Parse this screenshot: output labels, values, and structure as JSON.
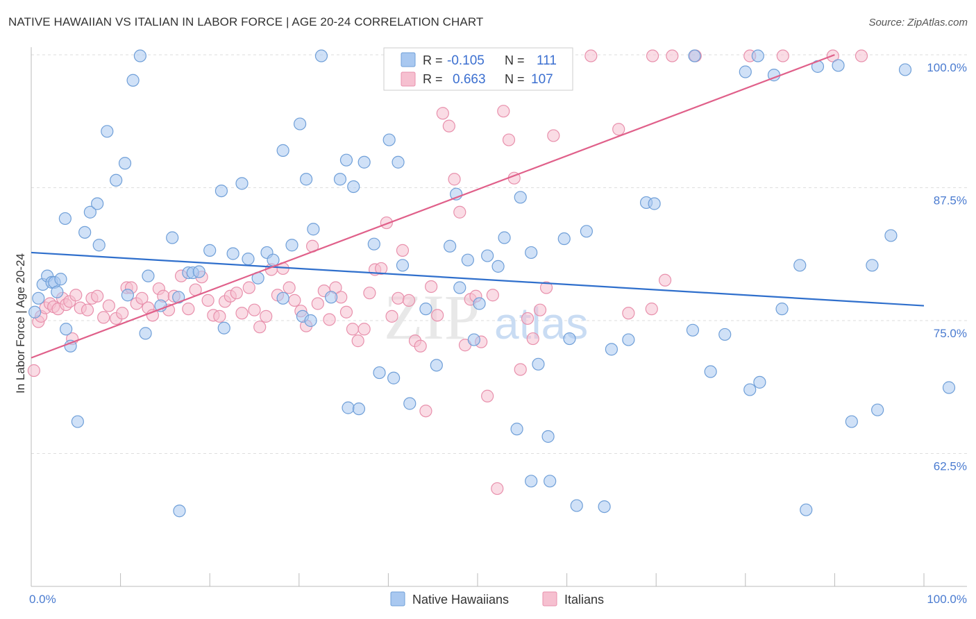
{
  "title": "NATIVE HAWAIIAN VS ITALIAN IN LABOR FORCE | AGE 20-24 CORRELATION CHART",
  "source": "Source: ZipAtlas.com",
  "watermark": {
    "zip": "ZIP",
    "atlas": "atlas"
  },
  "colors": {
    "blue_fill": "#a9c8f0",
    "blue_stroke": "#6f9fd8",
    "blue_line": "#2f6fcc",
    "pink_fill": "#f6c0d0",
    "pink_stroke": "#e890ac",
    "pink_line": "#e0608a",
    "tick": "#4a7bd0",
    "grid": "#dddddd"
  },
  "stats": {
    "r_label": "R =",
    "n_label": "N =",
    "blue": {
      "r": "-0.105",
      "n": "111"
    },
    "pink": {
      "r": "0.663",
      "n": "107"
    }
  },
  "chart_data": {
    "type": "scatter",
    "xlabel": "",
    "ylabel": "In Labor Force | Age 20-24",
    "xlim": [
      0,
      100
    ],
    "ylim": [
      50,
      100
    ],
    "x_tick_labels": [
      "0.0%",
      "100.0%"
    ],
    "y_ticks": [
      62.5,
      75.0,
      87.5,
      100.0
    ],
    "y_tick_labels": [
      "62.5%",
      "75.0%",
      "87.5%",
      "100.0%"
    ],
    "grid": true,
    "legend": {
      "placement": "bottom",
      "entries": [
        "Native Hawaiians",
        "Italians"
      ]
    },
    "series": [
      {
        "name": "Native Hawaiians",
        "color": "#a9c8f0",
        "trend": {
          "x": [
            0,
            100
          ],
          "y": [
            81.4,
            76.4
          ]
        },
        "points": [
          [
            0.4,
            75.8
          ],
          [
            0.8,
            77.1
          ],
          [
            1.3,
            78.4
          ],
          [
            1.8,
            79.2
          ],
          [
            2.3,
            78.6
          ],
          [
            2.6,
            78.6
          ],
          [
            2.9,
            77.7
          ],
          [
            3.3,
            78.9
          ],
          [
            3.9,
            74.2
          ],
          [
            4.4,
            72.6
          ],
          [
            3.8,
            84.6
          ],
          [
            5.2,
            65.5
          ],
          [
            6.0,
            83.3
          ],
          [
            6.6,
            85.2
          ],
          [
            7.4,
            86.0
          ],
          [
            7.6,
            82.1
          ],
          [
            8.5,
            92.8
          ],
          [
            9.5,
            88.2
          ],
          [
            10.5,
            89.8
          ],
          [
            11.4,
            97.6
          ],
          [
            12.2,
            99.9
          ],
          [
            10.8,
            77.4
          ],
          [
            12.8,
            73.8
          ],
          [
            13.1,
            79.2
          ],
          [
            14.5,
            76.4
          ],
          [
            15.8,
            82.8
          ],
          [
            16.5,
            77.2
          ],
          [
            17.6,
            79.5
          ],
          [
            18.1,
            79.5
          ],
          [
            18.8,
            79.6
          ],
          [
            16.6,
            57.1
          ],
          [
            20.0,
            81.6
          ],
          [
            21.3,
            87.2
          ],
          [
            21.6,
            74.3
          ],
          [
            22.6,
            81.3
          ],
          [
            23.6,
            87.9
          ],
          [
            24.3,
            80.8
          ],
          [
            25.4,
            79.0
          ],
          [
            26.4,
            81.4
          ],
          [
            27.1,
            80.7
          ],
          [
            28.2,
            77.1
          ],
          [
            29.2,
            82.1
          ],
          [
            28.2,
            91.0
          ],
          [
            30.1,
            93.5
          ],
          [
            30.8,
            88.3
          ],
          [
            30.4,
            75.4
          ],
          [
            31.3,
            75.0
          ],
          [
            31.6,
            83.6
          ],
          [
            32.5,
            99.9
          ],
          [
            33.6,
            77.2
          ],
          [
            34.6,
            88.3
          ],
          [
            35.3,
            90.1
          ],
          [
            36.1,
            87.6
          ],
          [
            35.5,
            66.8
          ],
          [
            36.7,
            66.7
          ],
          [
            37.3,
            89.9
          ],
          [
            38.4,
            82.2
          ],
          [
            39.0,
            70.1
          ],
          [
            40.1,
            92.0
          ],
          [
            40.6,
            69.6
          ],
          [
            41.1,
            89.9
          ],
          [
            41.6,
            80.2
          ],
          [
            42.4,
            67.2
          ],
          [
            42.8,
            99.9
          ],
          [
            44.2,
            76.1
          ],
          [
            45.4,
            70.8
          ],
          [
            46.9,
            82.0
          ],
          [
            47.6,
            86.9
          ],
          [
            48.0,
            78.1
          ],
          [
            48.9,
            80.7
          ],
          [
            49.6,
            73.2
          ],
          [
            50.2,
            76.6
          ],
          [
            51.1,
            81.1
          ],
          [
            52.3,
            80.1
          ],
          [
            53.0,
            82.8
          ],
          [
            54.4,
            64.8
          ],
          [
            54.8,
            86.6
          ],
          [
            56.0,
            81.4
          ],
          [
            56.8,
            70.9
          ],
          [
            56.0,
            59.9
          ],
          [
            57.9,
            64.1
          ],
          [
            58.1,
            59.9
          ],
          [
            59.7,
            82.7
          ],
          [
            60.3,
            73.3
          ],
          [
            61.1,
            57.6
          ],
          [
            62.2,
            83.4
          ],
          [
            64.2,
            57.5
          ],
          [
            65.0,
            72.3
          ],
          [
            66.9,
            73.2
          ],
          [
            68.9,
            86.1
          ],
          [
            69.8,
            86.0
          ],
          [
            74.1,
            74.1
          ],
          [
            74.3,
            99.9
          ],
          [
            76.1,
            70.2
          ],
          [
            77.7,
            73.7
          ],
          [
            80.0,
            98.4
          ],
          [
            80.5,
            68.5
          ],
          [
            81.4,
            99.9
          ],
          [
            81.6,
            69.2
          ],
          [
            83.2,
            98.1
          ],
          [
            84.1,
            76.1
          ],
          [
            86.1,
            80.2
          ],
          [
            91.9,
            65.5
          ],
          [
            94.2,
            80.2
          ],
          [
            94.8,
            66.6
          ],
          [
            96.3,
            83.0
          ],
          [
            102.8,
            68.7
          ],
          [
            86.8,
            57.2
          ],
          [
            88.1,
            98.9
          ],
          [
            90.4,
            99.0
          ],
          [
            97.9,
            98.6
          ]
        ]
      },
      {
        "name": "Italians",
        "color": "#f6c0d0",
        "trend": {
          "x": [
            0,
            90
          ],
          "y": [
            71.5,
            100.0
          ]
        },
        "points": [
          [
            0.3,
            70.3
          ],
          [
            0.8,
            74.9
          ],
          [
            1.1,
            75.4
          ],
          [
            1.6,
            76.2
          ],
          [
            2.1,
            76.6
          ],
          [
            2.5,
            76.3
          ],
          [
            3.0,
            76.1
          ],
          [
            3.5,
            77.1
          ],
          [
            3.9,
            76.5
          ],
          [
            4.3,
            76.8
          ],
          [
            4.6,
            73.3
          ],
          [
            5.0,
            77.4
          ],
          [
            5.5,
            76.2
          ],
          [
            6.3,
            76.0
          ],
          [
            6.8,
            77.1
          ],
          [
            7.4,
            77.3
          ],
          [
            8.1,
            75.3
          ],
          [
            8.7,
            76.4
          ],
          [
            9.5,
            75.2
          ],
          [
            10.2,
            75.7
          ],
          [
            10.7,
            78.1
          ],
          [
            11.2,
            78.1
          ],
          [
            11.8,
            76.6
          ],
          [
            12.4,
            77.1
          ],
          [
            13.1,
            76.2
          ],
          [
            13.6,
            75.5
          ],
          [
            14.3,
            78.0
          ],
          [
            14.8,
            77.3
          ],
          [
            15.4,
            76.0
          ],
          [
            16.0,
            77.3
          ],
          [
            16.8,
            79.2
          ],
          [
            17.6,
            76.1
          ],
          [
            18.4,
            77.9
          ],
          [
            19.1,
            79.1
          ],
          [
            19.8,
            76.9
          ],
          [
            20.4,
            75.5
          ],
          [
            21.1,
            75.4
          ],
          [
            21.7,
            76.8
          ],
          [
            22.3,
            77.3
          ],
          [
            23.0,
            77.6
          ],
          [
            23.6,
            75.7
          ],
          [
            24.4,
            78.1
          ],
          [
            25.0,
            76.0
          ],
          [
            25.6,
            74.4
          ],
          [
            26.3,
            75.4
          ],
          [
            26.9,
            79.8
          ],
          [
            27.6,
            77.4
          ],
          [
            28.2,
            79.9
          ],
          [
            28.9,
            78.1
          ],
          [
            29.5,
            76.9
          ],
          [
            30.2,
            75.9
          ],
          [
            30.8,
            74.5
          ],
          [
            31.5,
            82.0
          ],
          [
            32.1,
            76.6
          ],
          [
            32.8,
            77.8
          ],
          [
            33.4,
            75.1
          ],
          [
            34.1,
            78.1
          ],
          [
            34.7,
            77.2
          ],
          [
            35.3,
            75.8
          ],
          [
            36.0,
            74.2
          ],
          [
            36.6,
            73.1
          ],
          [
            37.3,
            74.2
          ],
          [
            37.9,
            77.6
          ],
          [
            38.5,
            79.8
          ],
          [
            39.2,
            79.9
          ],
          [
            39.8,
            84.2
          ],
          [
            40.4,
            75.4
          ],
          [
            41.1,
            77.1
          ],
          [
            41.6,
            81.6
          ],
          [
            42.3,
            76.9
          ],
          [
            43.0,
            73.1
          ],
          [
            43.6,
            72.6
          ],
          [
            44.2,
            66.5
          ],
          [
            44.8,
            78.2
          ],
          [
            45.5,
            75.5
          ],
          [
            46.1,
            94.5
          ],
          [
            46.8,
            93.3
          ],
          [
            47.4,
            88.3
          ],
          [
            48.0,
            85.2
          ],
          [
            48.6,
            72.7
          ],
          [
            49.2,
            77.0
          ],
          [
            49.8,
            77.3
          ],
          [
            50.4,
            73.0
          ],
          [
            51.1,
            67.9
          ],
          [
            51.7,
            77.4
          ],
          [
            52.2,
            59.2
          ],
          [
            52.9,
            94.7
          ],
          [
            53.5,
            92.0
          ],
          [
            54.1,
            88.4
          ],
          [
            54.8,
            70.4
          ],
          [
            55.6,
            75.2
          ],
          [
            56.2,
            73.3
          ],
          [
            57.0,
            76.0
          ],
          [
            57.7,
            78.1
          ],
          [
            58.5,
            92.4
          ],
          [
            62.7,
            99.9
          ],
          [
            65.8,
            93.0
          ],
          [
            66.9,
            75.7
          ],
          [
            69.6,
            99.9
          ],
          [
            71.0,
            78.8
          ],
          [
            74.4,
            99.9
          ],
          [
            80.5,
            99.9
          ],
          [
            84.2,
            99.9
          ],
          [
            89.8,
            99.9
          ],
          [
            93.0,
            99.9
          ],
          [
            71.8,
            99.9
          ],
          [
            69.5,
            76.1
          ]
        ]
      }
    ]
  }
}
